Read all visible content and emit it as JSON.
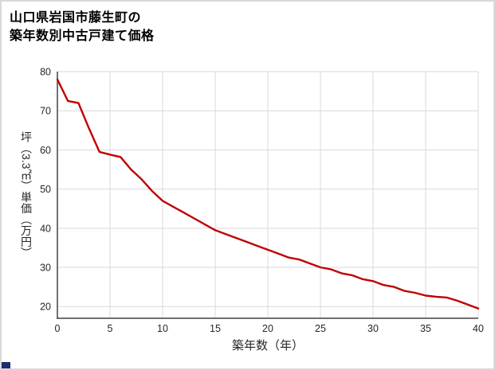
{
  "title": {
    "line1": "山口県岩国市藤生町の",
    "line2": "築年数別中古戸建て価格"
  },
  "chart_data": {
    "type": "line",
    "title": "山口県岩国市藤生町の築年数別中古戸建て価格",
    "x": [
      0,
      1,
      2,
      3,
      4,
      5,
      6,
      7,
      8,
      9,
      10,
      11,
      12,
      13,
      14,
      15,
      16,
      17,
      18,
      19,
      20,
      21,
      22,
      23,
      24,
      25,
      26,
      27,
      28,
      29,
      30,
      31,
      32,
      33,
      34,
      35,
      36,
      37,
      38,
      39,
      40
    ],
    "values": [
      78,
      72.5,
      72,
      65.5,
      59.5,
      58.8,
      58.2,
      55,
      52.5,
      49.5,
      47,
      45.5,
      44,
      42.5,
      41,
      39.5,
      38.5,
      37.5,
      36.5,
      35.5,
      34.5,
      33.5,
      32.5,
      32,
      31,
      30,
      29.5,
      28.5,
      28,
      27,
      26.5,
      25.5,
      25,
      24,
      23.5,
      22.8,
      22.5,
      22.3,
      21.5,
      20.5,
      19.5
    ],
    "xlabel": "築年数（年）",
    "ylabel": "坪（3.3㎡）単価（万円）",
    "xlim": [
      0,
      40
    ],
    "ylim": [
      17,
      80
    ],
    "x_ticks": [
      0,
      5,
      10,
      15,
      20,
      25,
      30,
      35,
      40
    ],
    "y_ticks": [
      20,
      30,
      40,
      50,
      60,
      70,
      80
    ],
    "grid": true,
    "legend": false,
    "colors": {
      "line": "#c00000",
      "grid": "#d9d9d9",
      "axis": "#404040",
      "tick_text": "#262626",
      "corner_mark": "#1f2d6e"
    }
  }
}
